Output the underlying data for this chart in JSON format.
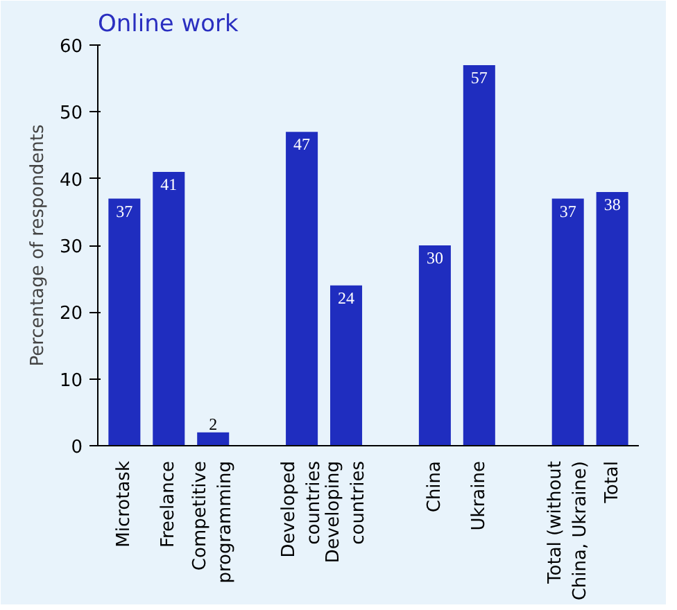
{
  "chart_data": {
    "type": "bar",
    "title": "Online work",
    "ylabel": "Percentage of respondents",
    "categories": [
      "Microtask",
      "Freelance",
      "Competitive programming",
      null,
      "Developed countries",
      "Developing countries",
      null,
      "China",
      "Ukraine",
      null,
      "Total (without China, Ukraine)",
      "Total"
    ],
    "values": [
      37,
      41,
      2,
      null,
      47,
      24,
      null,
      30,
      57,
      null,
      37,
      38
    ],
    "color": "#1f2dbf",
    "ylim": [
      0,
      60
    ],
    "yticks": [
      0,
      10,
      20,
      30,
      40,
      50,
      60
    ],
    "grid": false,
    "data_labels": true
  }
}
